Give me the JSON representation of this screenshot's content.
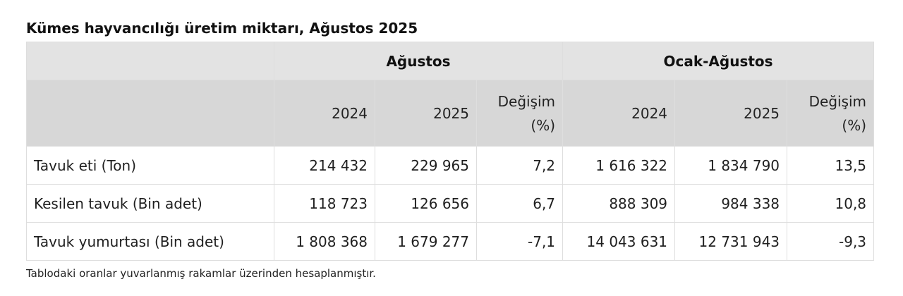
{
  "title": "Kümes hayvancılığı üretim miktarı, Ağustos 2025",
  "table": {
    "group_headers": [
      "Ağustos",
      "Ocak-Ağustos"
    ],
    "year_headers": [
      "2024",
      "2025",
      "Değişim (%)",
      "2024",
      "2025",
      "Değişim (%)"
    ],
    "rows": [
      {
        "label": "Tavuk eti (Ton)",
        "values": [
          "214 432",
          "229 965",
          "7,2",
          "1 616 322",
          "1 834 790",
          "13,5"
        ]
      },
      {
        "label": "Kesilen tavuk (Bin adet)",
        "values": [
          "118 723",
          "126 656",
          "6,7",
          "888 309",
          "984 338",
          "10,8"
        ]
      },
      {
        "label": "Tavuk yumurtası (Bin adet)",
        "values": [
          "1 808 368",
          "1 679 277",
          "-7,1",
          "14 043 631",
          "12 731 943",
          "-9,3"
        ]
      }
    ]
  },
  "note": "Tablodaki oranlar yuvarlanmış rakamlar üzerinden hesaplanmıştır."
}
